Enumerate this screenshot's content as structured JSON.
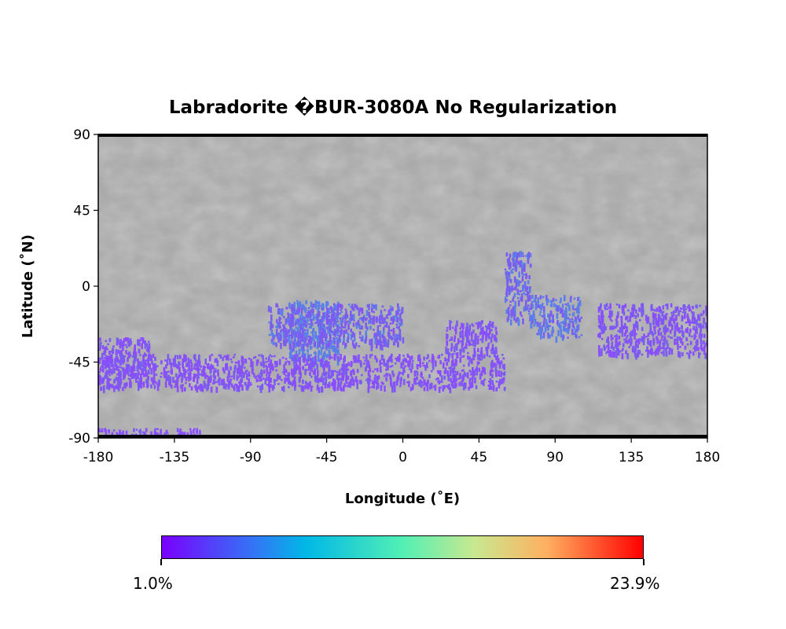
{
  "chart_data": {
    "type": "heatmap",
    "title": "Labradorite �BUR-3080A No Regularization",
    "xlabel": "Longitude (˚E)",
    "ylabel": "Latitude (˚N)",
    "xlim": [
      -180,
      180
    ],
    "ylim": [
      -90,
      90
    ],
    "xticks": [
      "-180",
      "-135",
      "-90",
      "-45",
      "0",
      "45",
      "90",
      "135",
      "180"
    ],
    "yticks": [
      "90",
      "45",
      "0",
      "-45",
      "-90"
    ],
    "basemap": "grayscale shaded relief",
    "colormap": "rainbow",
    "colorbar": {
      "min_label": "1.0%",
      "max_label": "23.9%",
      "min": 1.0,
      "max": 23.9,
      "orientation": "horizontal",
      "placement": "bottom"
    },
    "colors": {
      "low": "#7a00ff",
      "mid": "#52f0b4",
      "high": "#ff0000"
    },
    "regions": [
      {
        "lon": [
          -68,
          -38
        ],
        "lat": [
          -45,
          -8
        ],
        "value": 3.0
      },
      {
        "lon": [
          -80,
          0
        ],
        "lat": [
          -35,
          -10
        ],
        "value": 2.0
      },
      {
        "lon": [
          60,
          75
        ],
        "lat": [
          -20,
          22
        ],
        "value": 2.2
      },
      {
        "lon": [
          75,
          105
        ],
        "lat": [
          -30,
          -5
        ],
        "value": 2.6
      },
      {
        "lon": [
          115,
          180
        ],
        "lat": [
          -40,
          -10
        ],
        "value": 1.5
      },
      {
        "lon": [
          -180,
          -150
        ],
        "lat": [
          -55,
          -30
        ],
        "value": 1.4
      },
      {
        "lon": [
          -180,
          60
        ],
        "lat": [
          -60,
          -40
        ],
        "value": 1.3
      },
      {
        "lon": [
          25,
          55
        ],
        "lat": [
          -40,
          -20
        ],
        "value": 1.4
      },
      {
        "lon": [
          -180,
          -120
        ],
        "lat": [
          -90,
          -84
        ],
        "value": 1.2
      }
    ]
  }
}
